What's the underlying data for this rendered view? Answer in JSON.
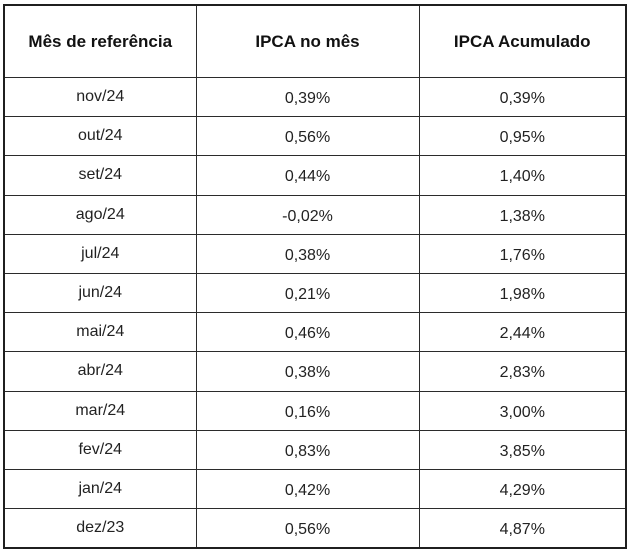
{
  "table": {
    "headers": [
      "Mês de referência",
      "IPCA no mês",
      "IPCA Acumulado"
    ],
    "rows": [
      {
        "month": "nov/24",
        "ipca_mes": "0,39%",
        "ipca_acumulado": "0,39%"
      },
      {
        "month": "out/24",
        "ipca_mes": "0,56%",
        "ipca_acumulado": "0,95%"
      },
      {
        "month": "set/24",
        "ipca_mes": "0,44%",
        "ipca_acumulado": "1,40%"
      },
      {
        "month": "ago/24",
        "ipca_mes": "-0,02%",
        "ipca_acumulado": "1,38%"
      },
      {
        "month": "jul/24",
        "ipca_mes": "0,38%",
        "ipca_acumulado": "1,76%"
      },
      {
        "month": "jun/24",
        "ipca_mes": "0,21%",
        "ipca_acumulado": "1,98%"
      },
      {
        "month": "mai/24",
        "ipca_mes": "0,46%",
        "ipca_acumulado": "2,44%"
      },
      {
        "month": "abr/24",
        "ipca_mes": "0,38%",
        "ipca_acumulado": "2,83%"
      },
      {
        "month": "mar/24",
        "ipca_mes": "0,16%",
        "ipca_acumulado": "3,00%"
      },
      {
        "month": "fev/24",
        "ipca_mes": "0,83%",
        "ipca_acumulado": "3,85%"
      },
      {
        "month": "jan/24",
        "ipca_mes": "0,42%",
        "ipca_acumulado": "4,29%"
      },
      {
        "month": "dez/23",
        "ipca_mes": "0,56%",
        "ipca_acumulado": "4,87%"
      }
    ]
  }
}
